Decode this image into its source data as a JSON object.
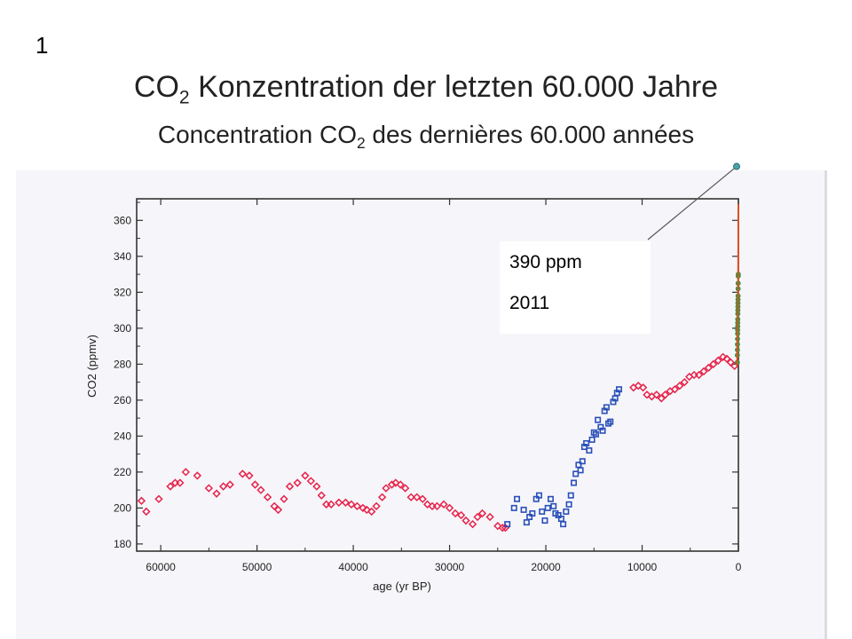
{
  "slide_number": "1",
  "title": {
    "line1_before": "CO",
    "line1_sub": "2",
    "line1_after": " Konzentration der letzten 60.000 Jahre",
    "line2_before": "Concentration CO",
    "line2_sub": "2",
    "line2_after": " des dernières 60.000 années"
  },
  "callout": {
    "value": "390 ppm",
    "year": "2011"
  },
  "colors": {
    "glacial_series": "#e8224a",
    "transition_series": "#2a4fb8",
    "instrumental_series": "#2f9a46",
    "recent_line": "#e05020",
    "callout_marker": "#4aa3a8",
    "frame": "#333333"
  },
  "chart_data": {
    "type": "scatter",
    "title": "",
    "xlabel": "age (yr BP)",
    "ylabel": "CO2 (ppmv)",
    "xlim": [
      62500,
      0
    ],
    "ylim": [
      176,
      372
    ],
    "x_ticks": [
      {
        "value": 60000,
        "label": "60000"
      },
      {
        "value": 50000,
        "label": "50000"
      },
      {
        "value": 40000,
        "label": "40000"
      },
      {
        "value": 30000,
        "label": "30000"
      },
      {
        "value": 20000,
        "label": "20000"
      },
      {
        "value": 10000,
        "label": "10000"
      },
      {
        "value": 0,
        "label": "0"
      }
    ],
    "y_ticks": [
      {
        "value": 180,
        "label": "180"
      },
      {
        "value": 200,
        "label": "200"
      },
      {
        "value": 220,
        "label": "220"
      },
      {
        "value": 240,
        "label": "240"
      },
      {
        "value": 260,
        "label": "260"
      },
      {
        "value": 280,
        "label": "280"
      },
      {
        "value": 300,
        "label": "300"
      },
      {
        "value": 320,
        "label": "320"
      },
      {
        "value": 340,
        "label": "340"
      },
      {
        "value": 360,
        "label": "360"
      }
    ],
    "grid": false,
    "legend": "none",
    "annotation": {
      "x": 0,
      "y": 390,
      "text": "390 ppm 2011"
    },
    "series": [
      {
        "marker": "diamond",
        "color": "#e8224a",
        "points": [
          [
            62000,
            204
          ],
          [
            61500,
            198
          ],
          [
            60200,
            205
          ],
          [
            59000,
            212
          ],
          [
            58500,
            214
          ],
          [
            58000,
            214
          ],
          [
            57400,
            220
          ],
          [
            56200,
            218
          ],
          [
            55000,
            211
          ],
          [
            54200,
            208
          ],
          [
            53500,
            212
          ],
          [
            52800,
            213
          ],
          [
            51500,
            219
          ],
          [
            50800,
            218
          ],
          [
            50200,
            213
          ],
          [
            49600,
            210
          ],
          [
            48900,
            206
          ],
          [
            48200,
            201
          ],
          [
            47800,
            199
          ],
          [
            47200,
            205
          ],
          [
            46600,
            212
          ],
          [
            45800,
            214
          ],
          [
            45000,
            218
          ],
          [
            44400,
            215
          ],
          [
            43800,
            212
          ],
          [
            43300,
            207
          ],
          [
            42800,
            202
          ],
          [
            42300,
            202
          ],
          [
            41500,
            203
          ],
          [
            40800,
            203
          ],
          [
            40200,
            202
          ],
          [
            39600,
            201
          ],
          [
            39000,
            200
          ],
          [
            38600,
            199
          ],
          [
            38100,
            198
          ],
          [
            37600,
            201
          ],
          [
            37000,
            206
          ],
          [
            36600,
            211
          ],
          [
            36000,
            213
          ],
          [
            35600,
            214
          ],
          [
            35100,
            213
          ],
          [
            34600,
            211
          ],
          [
            34000,
            206
          ],
          [
            33400,
            206
          ],
          [
            32800,
            205
          ],
          [
            32300,
            202
          ],
          [
            31800,
            201
          ],
          [
            31300,
            201
          ],
          [
            30600,
            202
          ],
          [
            30000,
            200
          ],
          [
            29400,
            197
          ],
          [
            28800,
            196
          ],
          [
            28300,
            193
          ],
          [
            27600,
            191
          ],
          [
            27100,
            195
          ],
          [
            26600,
            197
          ],
          [
            25800,
            195
          ],
          [
            25000,
            190
          ],
          [
            24500,
            189
          ],
          [
            24200,
            189
          ],
          [
            10900,
            267
          ],
          [
            10400,
            268
          ],
          [
            9900,
            267
          ],
          [
            9500,
            263
          ],
          [
            9000,
            262
          ],
          [
            8500,
            263
          ],
          [
            8000,
            261
          ],
          [
            7600,
            263
          ],
          [
            7100,
            265
          ],
          [
            6600,
            266
          ],
          [
            6100,
            268
          ],
          [
            5600,
            270
          ],
          [
            5100,
            273
          ],
          [
            4600,
            274
          ],
          [
            4100,
            274
          ],
          [
            3600,
            276
          ],
          [
            3100,
            278
          ],
          [
            2600,
            280
          ],
          [
            2100,
            282
          ],
          [
            1600,
            284
          ],
          [
            1200,
            283
          ],
          [
            800,
            281
          ],
          [
            400,
            279
          ]
        ]
      },
      {
        "marker": "square",
        "color": "#2a4fb8",
        "points": [
          [
            24000,
            191
          ],
          [
            23300,
            200
          ],
          [
            23000,
            205
          ],
          [
            22300,
            199
          ],
          [
            22000,
            192
          ],
          [
            21700,
            195
          ],
          [
            21400,
            197
          ],
          [
            21000,
            205
          ],
          [
            20700,
            207
          ],
          [
            20400,
            198
          ],
          [
            20100,
            193
          ],
          [
            19800,
            200
          ],
          [
            19500,
            205
          ],
          [
            19200,
            201
          ],
          [
            19000,
            197
          ],
          [
            18700,
            196
          ],
          [
            18400,
            194
          ],
          [
            18200,
            191
          ],
          [
            17900,
            198
          ],
          [
            17600,
            202
          ],
          [
            17400,
            207
          ],
          [
            17100,
            214
          ],
          [
            16900,
            219
          ],
          [
            16600,
            224
          ],
          [
            16400,
            221
          ],
          [
            16200,
            226
          ],
          [
            16000,
            234
          ],
          [
            15800,
            236
          ],
          [
            15500,
            232
          ],
          [
            15200,
            238
          ],
          [
            15000,
            242
          ],
          [
            14800,
            241
          ],
          [
            14600,
            249
          ],
          [
            14300,
            245
          ],
          [
            14100,
            243
          ],
          [
            13900,
            254
          ],
          [
            13700,
            256
          ],
          [
            13500,
            247
          ],
          [
            13300,
            248
          ],
          [
            13000,
            259
          ],
          [
            12800,
            261
          ],
          [
            12600,
            264
          ],
          [
            12400,
            266
          ]
        ]
      },
      {
        "marker": "circle",
        "color": "#2f9a46",
        "points": [
          [
            110,
            281
          ],
          [
            105,
            285
          ],
          [
            100,
            288
          ],
          [
            95,
            291
          ],
          [
            90,
            294
          ],
          [
            85,
            297
          ],
          [
            80,
            299
          ],
          [
            75,
            301
          ],
          [
            70,
            303
          ],
          [
            65,
            305
          ],
          [
            60,
            308
          ],
          [
            55,
            310
          ],
          [
            50,
            312
          ],
          [
            45,
            314
          ],
          [
            40,
            316
          ],
          [
            35,
            318
          ],
          [
            30,
            322
          ],
          [
            25,
            325
          ],
          [
            20,
            329
          ],
          [
            10,
            330
          ]
        ]
      },
      {
        "marker": "line",
        "color": "#e05020",
        "points": [
          [
            150,
            279
          ],
          [
            120,
            283
          ],
          [
            90,
            292
          ],
          [
            60,
            306
          ],
          [
            40,
            318
          ],
          [
            20,
            332
          ],
          [
            10,
            345
          ],
          [
            5,
            360
          ],
          [
            0,
            369
          ]
        ]
      }
    ]
  }
}
